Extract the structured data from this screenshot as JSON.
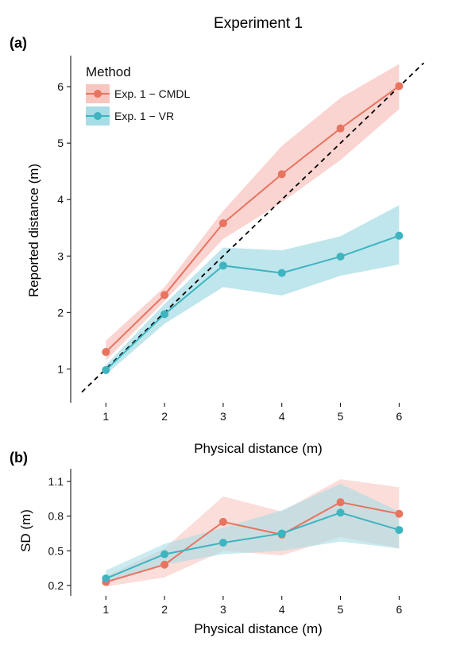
{
  "title": "Experiment 1",
  "colors": {
    "cmdl": "#E8735F",
    "vr": "#3DB4C0",
    "cmdl_band": "#F8C6C0",
    "vr_band": "#A8DDE6"
  },
  "legend": {
    "title": "Method",
    "position": "top-left"
  },
  "chart_data": [
    {
      "panel": "(a)",
      "type": "line",
      "xlabel": "Physical distance (m)",
      "ylabel": "Reported distance (m)",
      "x": [
        1,
        2,
        3,
        4,
        5,
        6
      ],
      "xticks": [
        "1",
        "2",
        "3",
        "4",
        "5",
        "6"
      ],
      "yticks": [
        "1",
        "2",
        "3",
        "4",
        "5",
        "6"
      ],
      "xlim": [
        0.4,
        6.55
      ],
      "ylim": [
        0.4,
        6.55
      ],
      "grid": false,
      "reference_line": {
        "type": "identity",
        "style": "dashed"
      },
      "series": [
        {
          "name": "Exp. 1 − CMDL",
          "values": [
            1.3,
            2.31,
            3.58,
            4.45,
            5.26,
            6.01
          ],
          "lower": [
            1.15,
            2.2,
            3.3,
            3.95,
            4.7,
            5.6
          ],
          "upper": [
            1.5,
            2.45,
            3.8,
            4.95,
            5.8,
            6.4
          ]
        },
        {
          "name": "Exp. 1 − VR",
          "values": [
            0.98,
            1.97,
            2.83,
            2.7,
            2.99,
            3.36
          ],
          "lower": [
            0.9,
            1.8,
            2.45,
            2.3,
            2.65,
            2.85
          ],
          "upper": [
            1.07,
            2.15,
            3.15,
            3.1,
            3.35,
            3.9
          ]
        }
      ]
    },
    {
      "panel": "(b)",
      "type": "line",
      "xlabel": "Physical distance (m)",
      "ylabel": "SD (m)",
      "x": [
        1,
        2,
        3,
        4,
        5,
        6
      ],
      "xticks": [
        "1",
        "2",
        "3",
        "4",
        "5",
        "6"
      ],
      "yticks": [
        "0.2",
        "0.5",
        "0.8",
        "1.1"
      ],
      "xlim": [
        0.4,
        6.55
      ],
      "ylim": [
        0.11,
        1.21
      ],
      "grid": false,
      "series": [
        {
          "name": "Exp. 1 − CMDL",
          "values": [
            0.23,
            0.38,
            0.75,
            0.64,
            0.92,
            0.82
          ],
          "lower": [
            0.19,
            0.27,
            0.5,
            0.46,
            0.62,
            0.52
          ],
          "upper": [
            0.28,
            0.52,
            0.97,
            0.84,
            1.12,
            1.05
          ]
        },
        {
          "name": "Exp. 1 − VR",
          "values": [
            0.26,
            0.47,
            0.57,
            0.65,
            0.83,
            0.68
          ],
          "lower": [
            0.22,
            0.38,
            0.47,
            0.5,
            0.58,
            0.52
          ],
          "upper": [
            0.33,
            0.56,
            0.7,
            0.85,
            1.08,
            0.84
          ]
        }
      ]
    }
  ]
}
